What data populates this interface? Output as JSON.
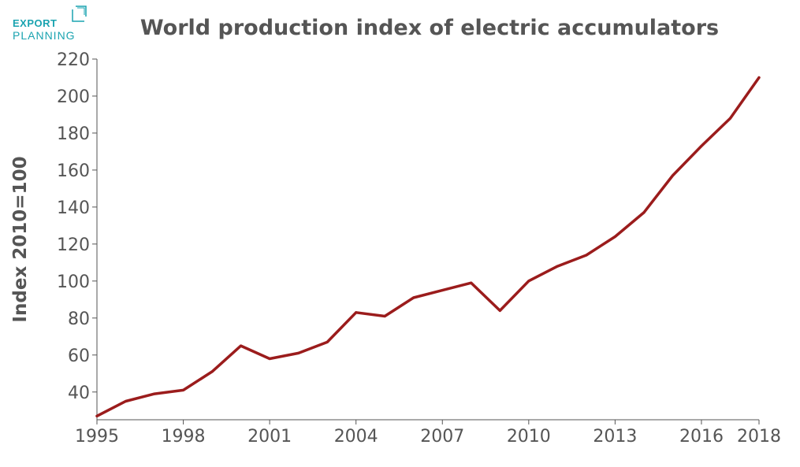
{
  "logo": {
    "line1": "EXPORT",
    "line2": "PLANNING",
    "color": "#1aa3b0"
  },
  "chart_data": {
    "type": "line",
    "title": "World production index of electric accumulators",
    "xlabel": "",
    "ylabel": "Index 2010=100",
    "xlim": [
      1995,
      2018
    ],
    "ylim": [
      25,
      220
    ],
    "x_ticks": [
      1995,
      1998,
      2001,
      2004,
      2007,
      2010,
      2013,
      2016,
      2018
    ],
    "y_ticks": [
      40,
      60,
      80,
      100,
      120,
      140,
      160,
      180,
      200,
      220
    ],
    "grid": false,
    "legend": "none",
    "series": [
      {
        "color": "#9b1c1c",
        "x": [
          1995,
          1996,
          1997,
          1998,
          1999,
          2000,
          2001,
          2002,
          2003,
          2004,
          2005,
          2006,
          2007,
          2008,
          2009,
          2010,
          2011,
          2012,
          2013,
          2014,
          2015,
          2016,
          2017,
          2018
        ],
        "y": [
          27,
          35,
          39,
          41,
          51,
          65,
          58,
          61,
          67,
          83,
          81,
          91,
          95,
          99,
          84,
          100,
          108,
          114,
          124,
          137,
          157,
          173,
          188,
          210
        ]
      }
    ]
  }
}
